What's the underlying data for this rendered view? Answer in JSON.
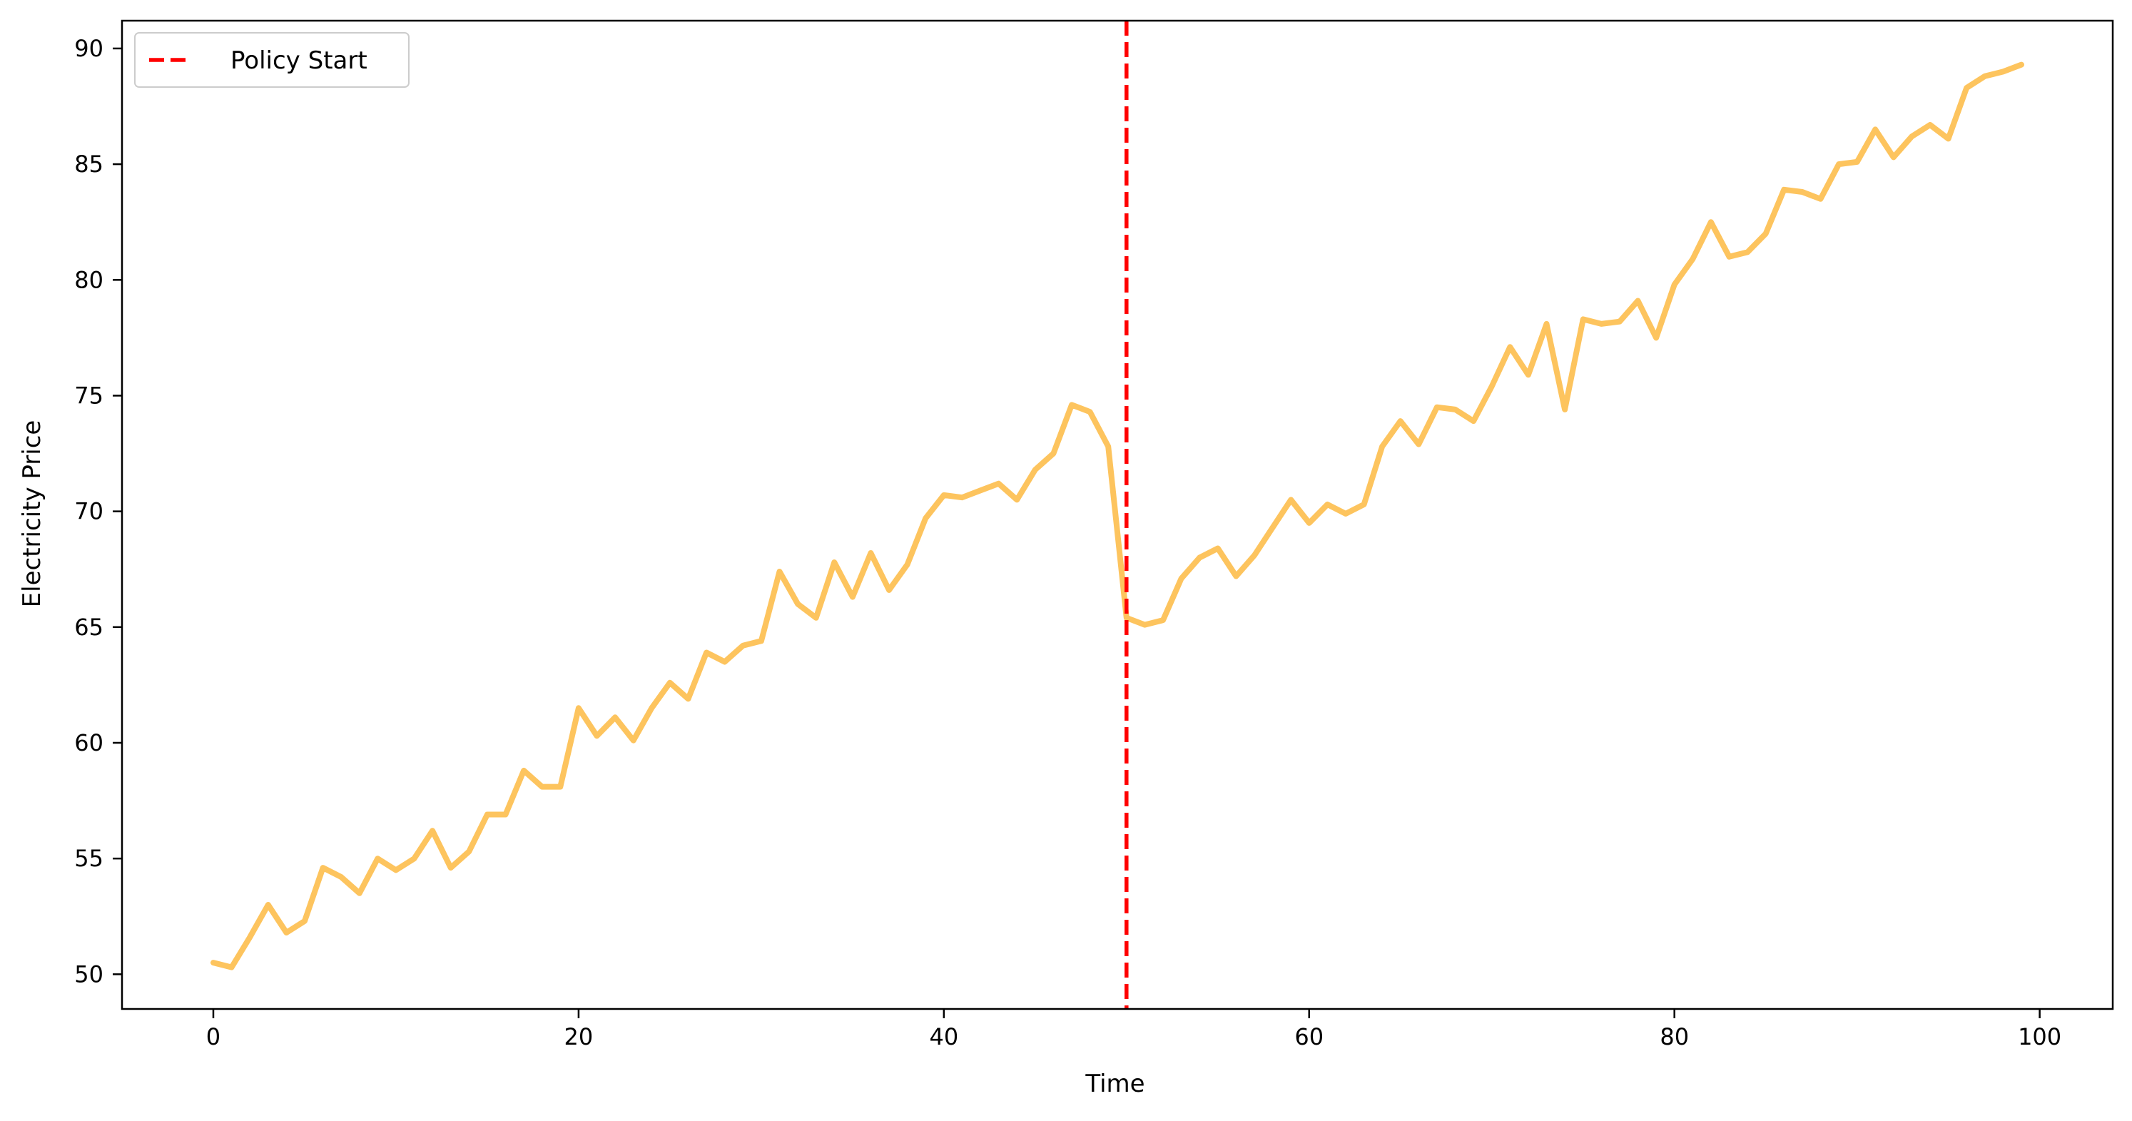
{
  "chart_data": {
    "type": "line",
    "xlabel": "Time",
    "ylabel": "Electricity Price",
    "xlim": [
      -5,
      104
    ],
    "ylim": [
      48.5,
      91.2
    ],
    "xticks": [
      0,
      20,
      40,
      60,
      80,
      100
    ],
    "yticks": [
      50,
      55,
      60,
      65,
      70,
      75,
      80,
      85,
      90
    ],
    "grid": false,
    "legend_position": "top-left",
    "series": [
      {
        "color": "#fdc45e",
        "x": [
          0,
          1,
          2,
          3,
          4,
          5,
          6,
          7,
          8,
          9,
          10,
          11,
          12,
          13,
          14,
          15,
          16,
          17,
          18,
          19,
          20,
          21,
          22,
          23,
          24,
          25,
          26,
          27,
          28,
          29,
          30,
          31,
          32,
          33,
          34,
          35,
          36,
          37,
          38,
          39,
          40,
          41,
          42,
          43,
          44,
          45,
          46,
          47,
          48,
          49,
          50,
          51,
          52,
          53,
          54,
          55,
          56,
          57,
          58,
          59,
          60,
          61,
          62,
          63,
          64,
          65,
          66,
          67,
          68,
          69,
          70,
          71,
          72,
          73,
          74,
          75,
          76,
          77,
          78,
          79,
          80,
          81,
          82,
          83,
          84,
          85,
          86,
          87,
          88,
          89,
          90,
          91,
          92,
          93,
          94,
          95,
          96,
          97,
          98,
          99
        ],
        "values": [
          50.5,
          50.3,
          51.6,
          53.0,
          51.8,
          52.3,
          54.6,
          54.2,
          53.5,
          55.0,
          54.5,
          55.0,
          56.2,
          54.6,
          55.3,
          56.9,
          56.9,
          58.8,
          58.1,
          58.1,
          61.5,
          60.3,
          61.1,
          60.1,
          61.5,
          62.6,
          61.9,
          63.9,
          63.5,
          64.2,
          64.4,
          67.4,
          66.0,
          65.4,
          67.8,
          66.3,
          68.2,
          66.6,
          67.7,
          69.7,
          70.7,
          70.6,
          70.9,
          71.2,
          70.5,
          71.8,
          72.5,
          74.6,
          74.3,
          72.8,
          65.4,
          65.1,
          65.3,
          67.1,
          68.0,
          68.4,
          67.2,
          68.1,
          69.3,
          70.5,
          69.5,
          70.3,
          69.9,
          70.3,
          72.8,
          73.9,
          72.9,
          74.5,
          74.4,
          73.9,
          75.4,
          77.1,
          75.9,
          78.1,
          74.4,
          78.3,
          78.1,
          78.2,
          79.1,
          77.5,
          79.8,
          80.9,
          82.5,
          81.0,
          81.2,
          82.0,
          83.9,
          83.8,
          83.5,
          85.0,
          85.1,
          86.5,
          85.3,
          86.2,
          86.7,
          86.1,
          88.3,
          88.8,
          89.0,
          89.3
        ]
      }
    ],
    "reference_lines": [
      {
        "name": "Policy Start",
        "x": 50,
        "color": "#ff0000",
        "style": "dashed"
      }
    ]
  }
}
